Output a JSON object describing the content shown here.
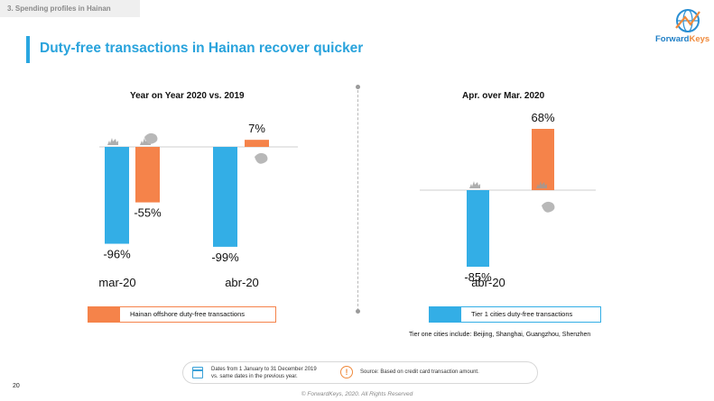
{
  "header": {
    "section_tab": "3. Spending profiles in Hainan",
    "title": "Duty-free transactions in Hainan recover quicker",
    "logo_text_a": "Forward",
    "logo_text_b": "Keys"
  },
  "colors": {
    "blue": "#33aee6",
    "orange": "#f5834a",
    "accent": "#2aa6e0"
  },
  "chart_data": [
    {
      "type": "bar",
      "title": "Year on Year 2020 vs. 2019",
      "categories": [
        "mar-20",
        "abr-20"
      ],
      "series": [
        {
          "name": "Tier 1 cities duty-free transactions",
          "values": [
            -96,
            -99
          ],
          "labels": [
            "-96%",
            "-99%"
          ]
        },
        {
          "name": "Hainan offshore duty-free transactions",
          "values": [
            -55,
            7
          ],
          "labels": [
            "-55%",
            "7%"
          ]
        }
      ],
      "ylim": [
        -100,
        10
      ],
      "legend": {
        "label": "Hainan offshore duty-free transactions",
        "placement": "bottom-left"
      }
    },
    {
      "type": "bar",
      "title": "Apr. over Mar. 2020",
      "categories": [
        "abr-20"
      ],
      "series": [
        {
          "name": "Tier 1 cities duty-free transactions",
          "values": [
            -85
          ],
          "labels": [
            "-85%"
          ]
        },
        {
          "name": "Hainan offshore duty-free transactions",
          "values": [
            68
          ],
          "labels": [
            "68%"
          ]
        }
      ],
      "ylim": [
        -85,
        68
      ],
      "legend": {
        "label": "Tier 1 cities duty-free transactions",
        "placement": "bottom"
      }
    }
  ],
  "footnotes": {
    "tier_note": "Tier one cities include: Beijing, Shanghai, Guangzhou, Shenzhen",
    "dates": "Dates from 1 January to 31 December 2019\nvs. same dates in the previous year.",
    "warn_glyph": "!",
    "source": "Source: Based on credit card transaction amount.",
    "page_number": "20",
    "copyright": "© ForwardKeys, 2020. All Rights Reserved"
  }
}
